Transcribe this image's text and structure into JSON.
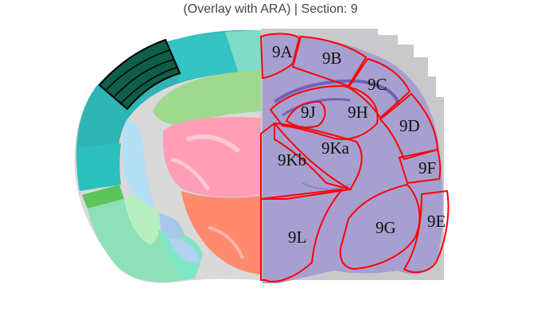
{
  "title": "(Overlay with ARA) | Section: 9",
  "colors": {
    "outline": "#ff0000",
    "highlight_fill": "#0d5f4a",
    "histology_bg": "#c9c9cb",
    "tissue": "#a79fd0"
  },
  "regions": [
    {
      "label": "9A"
    },
    {
      "label": "9B"
    },
    {
      "label": "9C"
    },
    {
      "label": "9D"
    },
    {
      "label": "9E"
    },
    {
      "label": "9F"
    },
    {
      "label": "9G"
    },
    {
      "label": "9H"
    },
    {
      "label": "9J"
    },
    {
      "label": "9Ka"
    },
    {
      "label": "9Kb"
    },
    {
      "label": "9L"
    }
  ]
}
